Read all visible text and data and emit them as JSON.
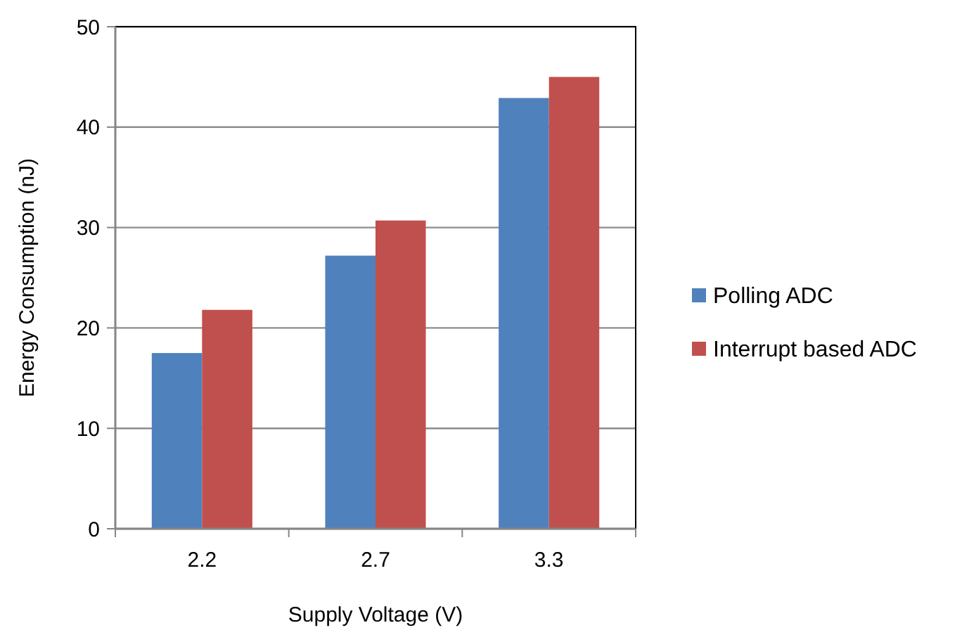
{
  "chart_data": {
    "type": "bar",
    "xlabel": "Supply Voltage (V)",
    "ylabel": "Energy Consumption (nJ)",
    "categories": [
      "2.2",
      "2.7",
      "3.3"
    ],
    "series": [
      {
        "name": "Polling ADC",
        "color": "#4f81bd",
        "values": [
          17.5,
          27.2,
          42.9
        ]
      },
      {
        "name": "Interrupt based ADC",
        "color": "#c0504d",
        "values": [
          21.8,
          30.7,
          45.0
        ]
      }
    ],
    "ylim": [
      0,
      50
    ],
    "yticks": [
      0,
      10,
      20,
      30,
      40,
      50
    ],
    "grid": "y",
    "legend": "right"
  }
}
